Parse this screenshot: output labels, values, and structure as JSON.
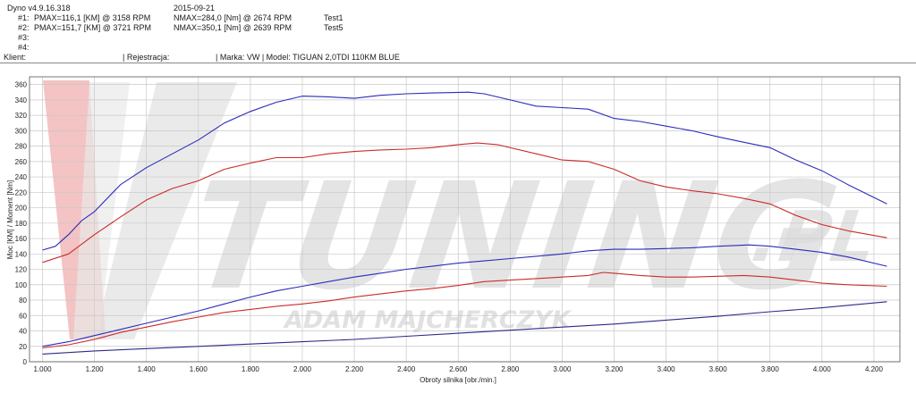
{
  "header": {
    "app_version": "Dyno v4.9.16.318",
    "date": "2015-09-21",
    "runs": [
      {
        "id": "#1:",
        "pmax": "PMAX=116,1 [KM] @ 3158 RPM",
        "nmax": "NMAX=284,0 [Nm] @ 2674 RPM",
        "name": "Test1"
      },
      {
        "id": "#2:",
        "pmax": "PMAX=151,7 [KM] @ 3721 RPM",
        "nmax": "NMAX=350,1 [Nm] @ 2639 RPM",
        "name": "Test5"
      },
      {
        "id": "#3:",
        "pmax": "",
        "nmax": "",
        "name": ""
      },
      {
        "id": "#4:",
        "pmax": "",
        "nmax": "",
        "name": ""
      }
    ],
    "client_label": "Klient:",
    "registration_label": "| Rejestracja:",
    "vehicle_label": "| Marka: VW | Model: TIGUAN 2,0TDI 110KM BLUE"
  },
  "watermark": {
    "brand": "TUNING",
    "domain": ".PL",
    "author": "ADAM MAJCHERCZYK"
  },
  "colors": {
    "run1": "#cc2b2b",
    "run2": "#2b2bbb",
    "loss": "#2b2b88",
    "grid": "#c8c8c8",
    "watermark": "#d9d9d9",
    "logo_red": "#f0b4b4"
  },
  "chart_data": {
    "type": "line",
    "title": "",
    "xlabel": "Obroty silnika [obr./min.]",
    "ylabel": "Moc [KM] / Moment [Nm]",
    "xlim": [
      950,
      4300
    ],
    "ylim": [
      0,
      370
    ],
    "x_ticks": [
      "1.000",
      "1.200",
      "1.400",
      "1.600",
      "1.800",
      "2.000",
      "2.200",
      "2.400",
      "2.600",
      "2.800",
      "3.000",
      "3.200",
      "3.400",
      "3.600",
      "3.800",
      "4.000",
      "4.200"
    ],
    "x_tick_values": [
      1000,
      1200,
      1400,
      1600,
      1800,
      2000,
      2200,
      2400,
      2600,
      2800,
      3000,
      3200,
      3400,
      3600,
      3800,
      4000,
      4200
    ],
    "y_ticks": [
      0,
      20,
      40,
      60,
      80,
      100,
      120,
      140,
      160,
      180,
      200,
      220,
      240,
      260,
      280,
      300,
      320,
      340,
      360
    ],
    "grid": true,
    "series": [
      {
        "name": "Test1",
        "kind": "torque",
        "color": "#cc2b2b",
        "x": [
          1000,
          1100,
          1200,
          1300,
          1400,
          1500,
          1600,
          1700,
          1800,
          1900,
          2000,
          2100,
          2200,
          2300,
          2400,
          2500,
          2600,
          2674,
          2750,
          2900,
          3000,
          3100,
          3200,
          3300,
          3400,
          3500,
          3600,
          3700,
          3800,
          3900,
          4000,
          4100,
          4250
        ],
        "y": [
          129,
          140,
          165,
          188,
          210,
          225,
          235,
          250,
          258,
          265,
          265,
          270,
          273,
          275,
          276,
          278,
          282,
          284,
          282,
          270,
          262,
          260,
          250,
          235,
          227,
          222,
          218,
          212,
          205,
          190,
          178,
          170,
          161
        ]
      },
      {
        "name": "Test5",
        "kind": "torque",
        "color": "#2b2bbb",
        "x": [
          1000,
          1050,
          1100,
          1150,
          1200,
          1300,
          1400,
          1500,
          1600,
          1700,
          1800,
          1900,
          2000,
          2100,
          2200,
          2300,
          2400,
          2500,
          2639,
          2700,
          2800,
          2900,
          3000,
          3100,
          3200,
          3300,
          3400,
          3500,
          3600,
          3700,
          3800,
          3900,
          4000,
          4100,
          4250
        ],
        "y": [
          145,
          150,
          165,
          183,
          195,
          230,
          252,
          270,
          288,
          310,
          325,
          337,
          345,
          344,
          342,
          346,
          348,
          349,
          350,
          348,
          340,
          332,
          330,
          328,
          316,
          312,
          306,
          300,
          292,
          285,
          278,
          262,
          248,
          230,
          205
        ]
      },
      {
        "name": "Test1",
        "kind": "power",
        "color": "#cc2b2b",
        "x": [
          1000,
          1100,
          1200,
          1300,
          1400,
          1500,
          1600,
          1700,
          1800,
          1900,
          2000,
          2100,
          2200,
          2300,
          2400,
          2500,
          2600,
          2700,
          2800,
          2900,
          3000,
          3100,
          3158,
          3200,
          3300,
          3400,
          3500,
          3600,
          3700,
          3800,
          3900,
          4000,
          4100,
          4250
        ],
        "y": [
          18,
          22,
          29,
          38,
          45,
          52,
          58,
          64,
          68,
          72,
          75,
          79,
          84,
          88,
          92,
          95,
          99,
          104,
          106,
          108,
          110,
          112,
          116,
          115,
          112,
          110,
          110,
          111,
          112,
          110,
          106,
          102,
          100,
          98
        ]
      },
      {
        "name": "Test5",
        "kind": "power",
        "color": "#2b2bbb",
        "x": [
          1000,
          1100,
          1200,
          1300,
          1400,
          1500,
          1600,
          1700,
          1800,
          1900,
          2000,
          2100,
          2200,
          2300,
          2400,
          2500,
          2600,
          2700,
          2800,
          2900,
          3000,
          3100,
          3200,
          3300,
          3400,
          3500,
          3600,
          3721,
          3800,
          3900,
          4000,
          4100,
          4250
        ],
        "y": [
          20,
          26,
          34,
          42,
          50,
          58,
          66,
          75,
          84,
          92,
          98,
          104,
          110,
          115,
          120,
          124,
          128,
          131,
          134,
          137,
          140,
          144,
          146,
          146,
          147,
          148,
          150,
          151.7,
          150,
          146,
          142,
          136,
          124
        ]
      },
      {
        "name": "",
        "kind": "loss",
        "color": "#2b2b88",
        "x": [
          1000,
          1200,
          1400,
          1600,
          1800,
          2000,
          2200,
          2400,
          2600,
          2800,
          3000,
          3200,
          3400,
          3600,
          3800,
          4000,
          4250
        ],
        "y": [
          10,
          14,
          17,
          20,
          23,
          26,
          29,
          33,
          37,
          41,
          45,
          49,
          54,
          59,
          65,
          70,
          78
        ]
      }
    ]
  }
}
